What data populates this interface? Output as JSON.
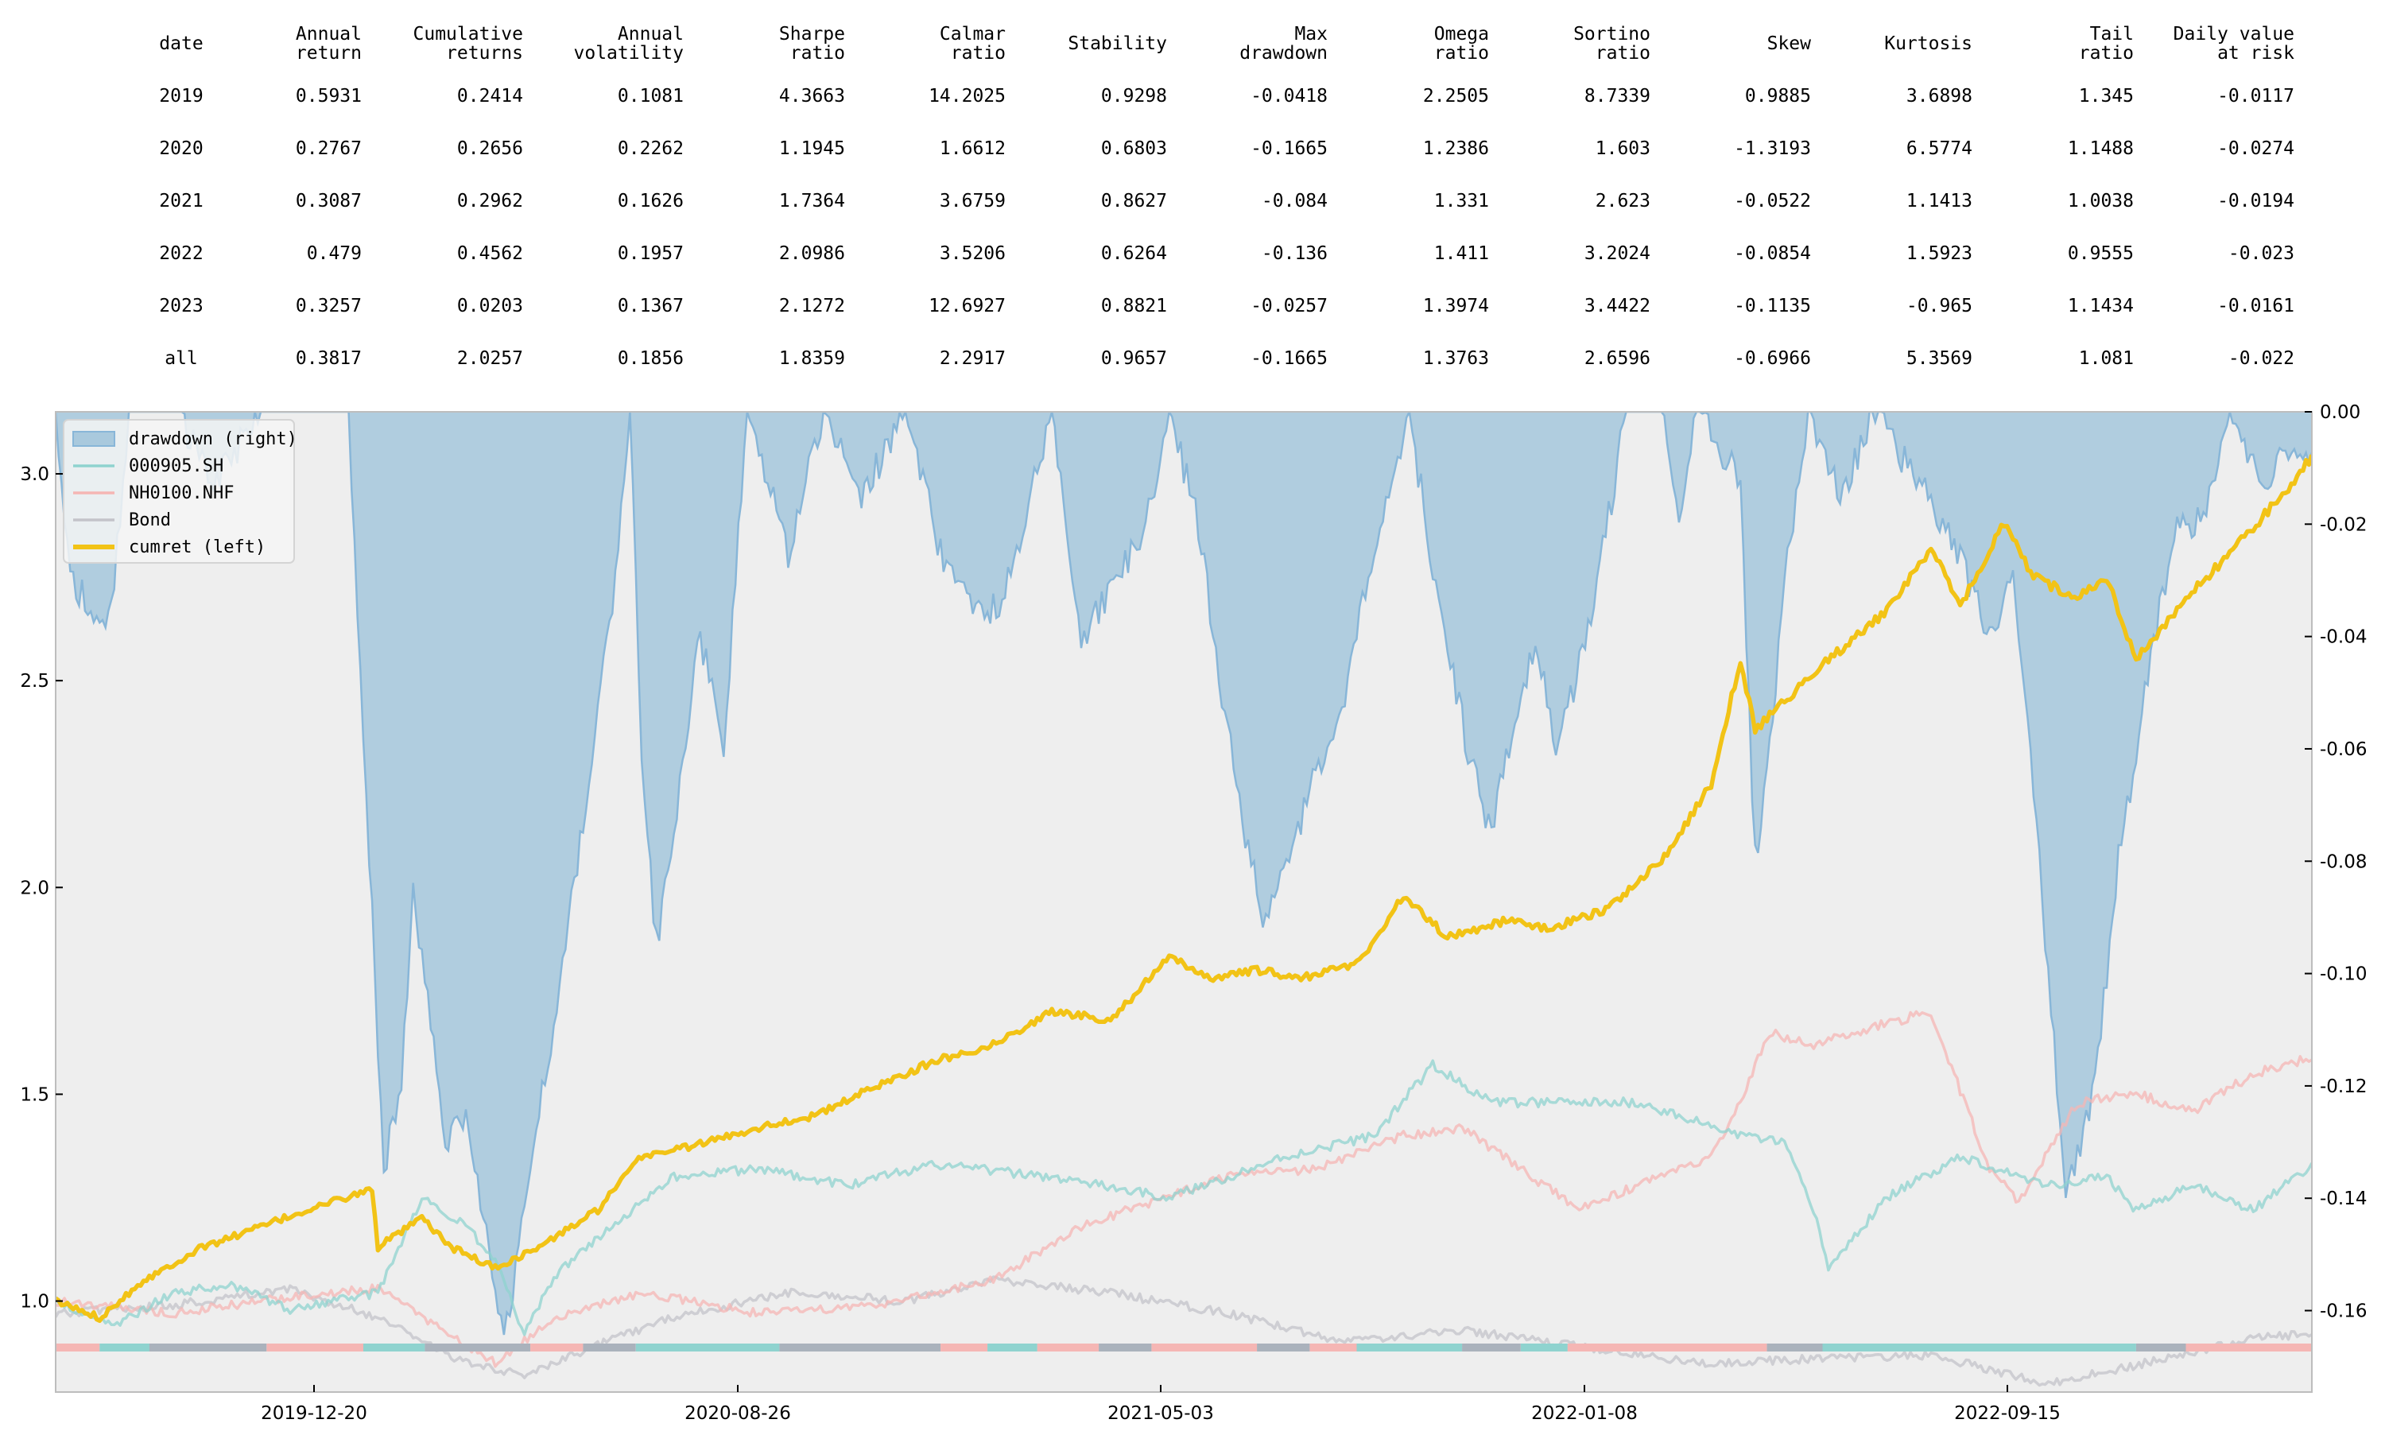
{
  "stats_table": {
    "columns": [
      [
        "date"
      ],
      [
        "Annual",
        "return"
      ],
      [
        "Cumulative",
        "returns"
      ],
      [
        "Annual",
        "volatility"
      ],
      [
        "Sharpe",
        "ratio"
      ],
      [
        "Calmar",
        "ratio"
      ],
      [
        "Stability"
      ],
      [
        "Max",
        "drawdown"
      ],
      [
        "Omega",
        "ratio"
      ],
      [
        "Sortino",
        "ratio"
      ],
      [
        "Skew"
      ],
      [
        "Kurtosis"
      ],
      [
        "Tail",
        "ratio"
      ],
      [
        "Daily value",
        "at risk"
      ]
    ],
    "rows": [
      [
        "2019",
        "0.5931",
        "0.2414",
        "0.1081",
        "4.3663",
        "14.2025",
        "0.9298",
        "-0.0418",
        "2.2505",
        "8.7339",
        "0.9885",
        "3.6898",
        "1.345",
        "-0.0117"
      ],
      [
        "2020",
        "0.2767",
        "0.2656",
        "0.2262",
        "1.1945",
        "1.6612",
        "0.6803",
        "-0.1665",
        "1.2386",
        "1.603",
        "-1.3193",
        "6.5774",
        "1.1488",
        "-0.0274"
      ],
      [
        "2021",
        "0.3087",
        "0.2962",
        "0.1626",
        "1.7364",
        "3.6759",
        "0.8627",
        "-0.084",
        "1.331",
        "2.623",
        "-0.0522",
        "1.1413",
        "1.0038",
        "-0.0194"
      ],
      [
        "2022",
        "0.479",
        "0.4562",
        "0.1957",
        "2.0986",
        "3.5206",
        "0.6264",
        "-0.136",
        "1.411",
        "3.2024",
        "-0.0854",
        "1.5923",
        "0.9555",
        "-0.023"
      ],
      [
        "2023",
        "0.3257",
        "0.0203",
        "0.1367",
        "2.1272",
        "12.6927",
        "0.8821",
        "-0.0257",
        "1.3974",
        "3.4422",
        "-0.1135",
        "-0.965",
        "1.1434",
        "-0.0161"
      ],
      [
        "all",
        "0.3817",
        "2.0257",
        "0.1856",
        "1.8359",
        "2.2917",
        "0.9657",
        "-0.1665",
        "1.3763",
        "2.6596",
        "-0.6966",
        "5.3569",
        "1.081",
        "-0.022"
      ]
    ]
  },
  "chart_data": {
    "type": "line",
    "x_ticks": [
      "2019-12-20",
      "2020-08-26",
      "2021-05-03",
      "2022-01-08",
      "2022-09-15"
    ],
    "left_axis": {
      "ticks": [
        "1.0",
        "1.5",
        "2.0",
        "2.5",
        "3.0"
      ],
      "range": [
        0.78,
        3.15
      ]
    },
    "right_axis": {
      "ticks": [
        "0.00",
        "-0.02",
        "-0.04",
        "-0.06",
        "-0.08",
        "-0.10",
        "-0.12",
        "-0.14",
        "-0.16"
      ],
      "range": [
        -0.1745,
        0
      ]
    },
    "grid": false,
    "legend": {
      "placement": "top-left",
      "entries": [
        "drawdown (right)",
        "000905.SH",
        "NH0100.NHF",
        "Bond",
        "cumret (left)"
      ]
    },
    "series": [
      {
        "name": "cumret (left)",
        "axis": "left",
        "color": "#f2c316",
        "points": [
          [
            0,
            1.0
          ],
          [
            15,
            0.96
          ],
          [
            30,
            1.05
          ],
          [
            50,
            1.13
          ],
          [
            70,
            1.18
          ],
          [
            90,
            1.23
          ],
          [
            108,
            1.27
          ],
          [
            110,
            1.13
          ],
          [
            125,
            1.2
          ],
          [
            135,
            1.13
          ],
          [
            150,
            1.08
          ],
          [
            165,
            1.13
          ],
          [
            185,
            1.22
          ],
          [
            200,
            1.35
          ],
          [
            220,
            1.38
          ],
          [
            240,
            1.42
          ],
          [
            260,
            1.45
          ],
          [
            280,
            1.52
          ],
          [
            300,
            1.58
          ],
          [
            320,
            1.62
          ],
          [
            340,
            1.7
          ],
          [
            360,
            1.68
          ],
          [
            380,
            1.83
          ],
          [
            395,
            1.78
          ],
          [
            410,
            1.8
          ],
          [
            425,
            1.78
          ],
          [
            445,
            1.82
          ],
          [
            460,
            1.98
          ],
          [
            475,
            1.88
          ],
          [
            495,
            1.92
          ],
          [
            510,
            1.9
          ],
          [
            530,
            1.95
          ],
          [
            550,
            2.08
          ],
          [
            565,
            2.25
          ],
          [
            575,
            2.55
          ],
          [
            580,
            2.38
          ],
          [
            600,
            2.52
          ],
          [
            625,
            2.67
          ],
          [
            640,
            2.82
          ],
          [
            650,
            2.68
          ],
          [
            665,
            2.88
          ],
          [
            675,
            2.75
          ],
          [
            690,
            2.7
          ],
          [
            700,
            2.75
          ],
          [
            710,
            2.55
          ],
          [
            730,
            2.72
          ],
          [
            745,
            2.83
          ],
          [
            760,
            2.95
          ],
          [
            770,
            3.04
          ]
        ]
      },
      {
        "name": "000905.SH",
        "axis": "left",
        "color": "#8fd3cf",
        "points": [
          [
            0,
            1.0
          ],
          [
            20,
            0.94
          ],
          [
            40,
            1.02
          ],
          [
            60,
            1.04
          ],
          [
            80,
            0.98
          ],
          [
            95,
            1.0
          ],
          [
            110,
            1.02
          ],
          [
            125,
            1.25
          ],
          [
            140,
            1.18
          ],
          [
            150,
            1.1
          ],
          [
            160,
            0.92
          ],
          [
            170,
            1.06
          ],
          [
            190,
            1.18
          ],
          [
            210,
            1.3
          ],
          [
            240,
            1.32
          ],
          [
            270,
            1.28
          ],
          [
            300,
            1.33
          ],
          [
            340,
            1.3
          ],
          [
            380,
            1.25
          ],
          [
            420,
            1.35
          ],
          [
            450,
            1.4
          ],
          [
            470,
            1.57
          ],
          [
            490,
            1.48
          ],
          [
            520,
            1.48
          ],
          [
            540,
            1.48
          ],
          [
            570,
            1.41
          ],
          [
            590,
            1.38
          ],
          [
            600,
            1.22
          ],
          [
            605,
            1.08
          ],
          [
            625,
            1.25
          ],
          [
            650,
            1.35
          ],
          [
            680,
            1.28
          ],
          [
            700,
            1.3
          ],
          [
            710,
            1.22
          ],
          [
            730,
            1.28
          ],
          [
            750,
            1.22
          ],
          [
            770,
            1.33
          ]
        ]
      },
      {
        "name": "NH0100.NHF",
        "axis": "left",
        "color": "#f5b6b4",
        "points": [
          [
            0,
            1.0
          ],
          [
            40,
            0.97
          ],
          [
            80,
            1.01
          ],
          [
            110,
            1.03
          ],
          [
            150,
            0.85
          ],
          [
            170,
            0.96
          ],
          [
            200,
            1.02
          ],
          [
            240,
            0.97
          ],
          [
            280,
            0.99
          ],
          [
            320,
            1.05
          ],
          [
            350,
            1.18
          ],
          [
            370,
            1.23
          ],
          [
            400,
            1.3
          ],
          [
            430,
            1.32
          ],
          [
            460,
            1.4
          ],
          [
            480,
            1.42
          ],
          [
            500,
            1.32
          ],
          [
            520,
            1.22
          ],
          [
            540,
            1.28
          ],
          [
            560,
            1.33
          ],
          [
            570,
            1.4
          ],
          [
            585,
            1.65
          ],
          [
            600,
            1.62
          ],
          [
            620,
            1.66
          ],
          [
            640,
            1.7
          ],
          [
            660,
            1.32
          ],
          [
            670,
            1.24
          ],
          [
            690,
            1.48
          ],
          [
            710,
            1.5
          ],
          [
            730,
            1.46
          ],
          [
            750,
            1.55
          ],
          [
            770,
            1.59
          ]
        ]
      },
      {
        "name": "Bond",
        "axis": "left",
        "color": "#c3c3c9",
        "points": [
          [
            0,
            0.97
          ],
          [
            40,
            0.99
          ],
          [
            80,
            1.03
          ],
          [
            110,
            0.96
          ],
          [
            140,
            0.85
          ],
          [
            160,
            0.82
          ],
          [
            180,
            0.88
          ],
          [
            210,
            0.96
          ],
          [
            250,
            1.02
          ],
          [
            290,
            1.0
          ],
          [
            320,
            1.05
          ],
          [
            360,
            1.02
          ],
          [
            400,
            0.97
          ],
          [
            440,
            0.9
          ],
          [
            480,
            0.93
          ],
          [
            520,
            0.89
          ],
          [
            560,
            0.85
          ],
          [
            600,
            0.86
          ],
          [
            640,
            0.87
          ],
          [
            680,
            0.8
          ],
          [
            720,
            0.86
          ],
          [
            750,
            0.91
          ],
          [
            770,
            0.92
          ]
        ]
      },
      {
        "name": "drawdown (right)",
        "axis": "right",
        "color": "#88b6d8",
        "fill": "#a9c9dd",
        "points": [
          [
            0,
            0
          ],
          [
            5,
            -0.028
          ],
          [
            15,
            -0.04
          ],
          [
            20,
            -0.03
          ],
          [
            25,
            0
          ],
          [
            40,
            0
          ],
          [
            55,
            -0.012
          ],
          [
            70,
            0
          ],
          [
            100,
            0
          ],
          [
            112,
            -0.135
          ],
          [
            118,
            -0.12
          ],
          [
            122,
            -0.085
          ],
          [
            128,
            -0.11
          ],
          [
            133,
            -0.13
          ],
          [
            140,
            -0.125
          ],
          [
            148,
            -0.15
          ],
          [
            153,
            -0.165
          ],
          [
            158,
            -0.15
          ],
          [
            163,
            -0.13
          ],
          [
            170,
            -0.11
          ],
          [
            178,
            -0.08
          ],
          [
            185,
            -0.055
          ],
          [
            192,
            -0.025
          ],
          [
            196,
            0
          ],
          [
            200,
            -0.06
          ],
          [
            205,
            -0.095
          ],
          [
            212,
            -0.07
          ],
          [
            220,
            -0.04
          ],
          [
            228,
            -0.06
          ],
          [
            236,
            0
          ],
          [
            250,
            -0.025
          ],
          [
            262,
            0
          ],
          [
            275,
            -0.015
          ],
          [
            290,
            0
          ],
          [
            302,
            -0.025
          ],
          [
            312,
            -0.035
          ],
          [
            322,
            -0.035
          ],
          [
            330,
            -0.02
          ],
          [
            340,
            0
          ],
          [
            350,
            -0.04
          ],
          [
            362,
            -0.03
          ],
          [
            372,
            -0.02
          ],
          [
            380,
            0
          ],
          [
            390,
            -0.02
          ],
          [
            398,
            -0.05
          ],
          [
            404,
            -0.07
          ],
          [
            412,
            -0.09
          ],
          [
            420,
            -0.08
          ],
          [
            430,
            -0.065
          ],
          [
            440,
            -0.05
          ],
          [
            450,
            -0.025
          ],
          [
            462,
            0
          ],
          [
            472,
            -0.035
          ],
          [
            482,
            -0.06
          ],
          [
            490,
            -0.075
          ],
          [
            498,
            -0.055
          ],
          [
            505,
            -0.04
          ],
          [
            512,
            -0.06
          ],
          [
            520,
            -0.045
          ],
          [
            528,
            -0.025
          ],
          [
            536,
            0
          ],
          [
            548,
            0
          ],
          [
            554,
            -0.02
          ],
          [
            560,
            0
          ],
          [
            575,
            -0.012
          ],
          [
            580,
            -0.08
          ],
          [
            585,
            -0.06
          ],
          [
            590,
            -0.03
          ],
          [
            598,
            0
          ],
          [
            610,
            -0.015
          ],
          [
            620,
            0
          ],
          [
            645,
            -0.02
          ],
          [
            660,
            -0.04
          ],
          [
            668,
            -0.03
          ],
          [
            674,
            -0.06
          ],
          [
            680,
            -0.1
          ],
          [
            686,
            -0.14
          ],
          [
            692,
            -0.13
          ],
          [
            698,
            -0.11
          ],
          [
            704,
            -0.08
          ],
          [
            710,
            -0.06
          ],
          [
            716,
            -0.04
          ],
          [
            724,
            -0.02
          ],
          [
            733,
            -0.02
          ],
          [
            742,
            0
          ],
          [
            752,
            -0.012
          ],
          [
            762,
            -0.008
          ],
          [
            770,
            -0.01
          ]
        ]
      }
    ],
    "regime_bar": {
      "colors": {
        "000905.SH": "#8fd3cf",
        "NH0100.NHF": "#f5b6b4",
        "Bond": "#aab2bc"
      },
      "segments": [
        [
          0,
          15,
          "NH0100.NHF"
        ],
        [
          15,
          32,
          "000905.SH"
        ],
        [
          32,
          72,
          "Bond"
        ],
        [
          72,
          105,
          "NH0100.NHF"
        ],
        [
          105,
          126,
          "000905.SH"
        ],
        [
          126,
          162,
          "Bond"
        ],
        [
          162,
          180,
          "NH0100.NHF"
        ],
        [
          180,
          198,
          "Bond"
        ],
        [
          198,
          247,
          "000905.SH"
        ],
        [
          247,
          302,
          "Bond"
        ],
        [
          302,
          318,
          "NH0100.NHF"
        ],
        [
          318,
          335,
          "000905.SH"
        ],
        [
          335,
          356,
          "NH0100.NHF"
        ],
        [
          356,
          374,
          "Bond"
        ],
        [
          374,
          410,
          "NH0100.NHF"
        ],
        [
          410,
          428,
          "Bond"
        ],
        [
          428,
          444,
          "NH0100.NHF"
        ],
        [
          444,
          480,
          "000905.SH"
        ],
        [
          480,
          500,
          "Bond"
        ],
        [
          500,
          516,
          "000905.SH"
        ],
        [
          516,
          584,
          "NH0100.NHF"
        ],
        [
          584,
          603,
          "Bond"
        ],
        [
          603,
          710,
          "000905.SH"
        ],
        [
          710,
          727,
          "Bond"
        ],
        [
          727,
          770,
          "NH0100.NHF"
        ]
      ]
    }
  }
}
